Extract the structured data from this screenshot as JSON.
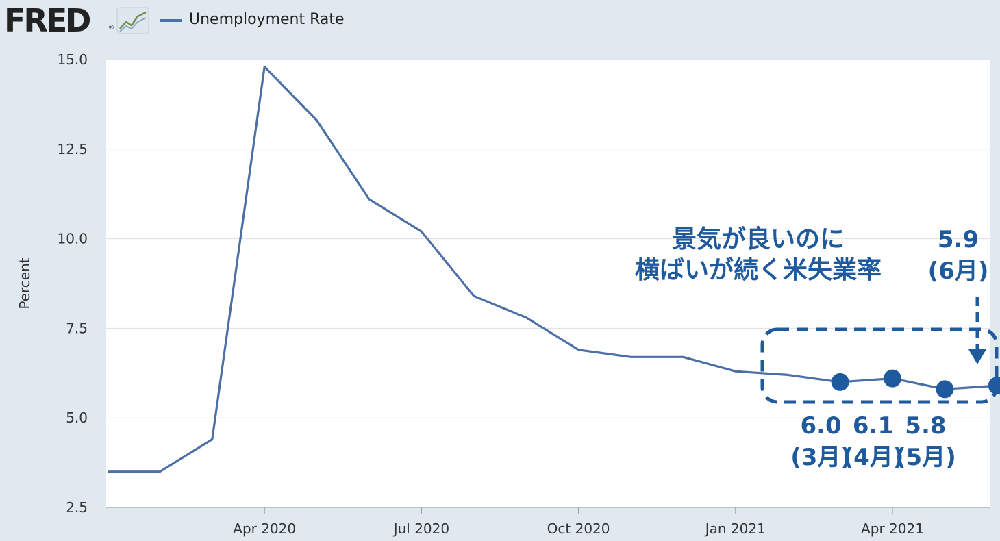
{
  "header": {
    "logo_text": "FRED",
    "logo_mark": "®",
    "logo_icon": "line-graph-icon",
    "legend_label": "Unemployment Rate"
  },
  "colors": {
    "series": "#4c6fa6",
    "annotation": "#1f5a9e",
    "plot_bg": "#ffffff",
    "page_bg": "#e1e9f0",
    "grid": "#e0e0e0"
  },
  "chart_data": {
    "type": "line",
    "title": "",
    "xlabel": "",
    "ylabel": "Percent",
    "ylim": [
      2.5,
      15.0
    ],
    "yticks": [
      "2.5",
      "5.0",
      "7.5",
      "10.0",
      "12.5",
      "15.0"
    ],
    "xtick_labels": [
      "Apr 2020",
      "Jul 2020",
      "Oct 2020",
      "Jan 2021",
      "Apr 2021"
    ],
    "grid": true,
    "series": [
      {
        "name": "Unemployment Rate",
        "x": [
          "2020-01",
          "2020-02",
          "2020-03",
          "2020-04",
          "2020-05",
          "2020-06",
          "2020-07",
          "2020-08",
          "2020-09",
          "2020-10",
          "2020-11",
          "2020-12",
          "2021-01",
          "2021-02",
          "2021-03",
          "2021-04",
          "2021-05",
          "2021-06"
        ],
        "values": [
          3.5,
          3.5,
          4.4,
          14.8,
          13.3,
          11.1,
          10.2,
          8.4,
          7.8,
          6.9,
          6.7,
          6.7,
          6.3,
          6.2,
          6.0,
          6.1,
          5.8,
          5.9
        ]
      }
    ],
    "highlighted_points": [
      {
        "x": "2021-03",
        "value": "6.0",
        "label": "(3月)"
      },
      {
        "x": "2021-04",
        "value": "6.1",
        "label": "(4月)"
      },
      {
        "x": "2021-05",
        "value": "5.8",
        "label": "(5月)"
      },
      {
        "x": "2021-06",
        "value": "5.9",
        "label": "(6月)"
      }
    ],
    "annotation_lines": [
      "景気が良いのに",
      "横ばいが続く米失業率"
    ]
  }
}
